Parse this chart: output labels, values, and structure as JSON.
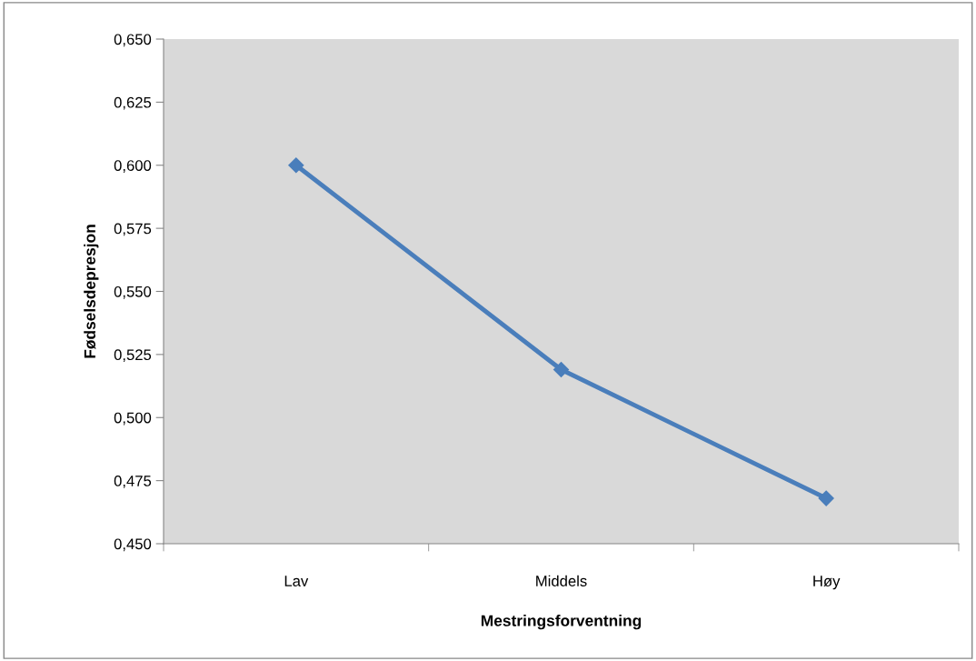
{
  "chart_data": {
    "type": "line",
    "xlabel": "Mestringsforventning",
    "ylabel": "Fødselsdepresjon",
    "categories": [
      "Lav",
      "Middels",
      "Høy"
    ],
    "series": [
      {
        "color": "#4a7ebb",
        "values": [
          0.6,
          0.519,
          0.468
        ]
      }
    ],
    "ylim": [
      0.45,
      0.65
    ],
    "yticks": [
      {
        "value": 0.45,
        "label": "0,450"
      },
      {
        "value": 0.475,
        "label": "0,475"
      },
      {
        "value": 0.5,
        "label": "0,500"
      },
      {
        "value": 0.525,
        "label": "0,525"
      },
      {
        "value": 0.55,
        "label": "0,550"
      },
      {
        "value": 0.575,
        "label": "0,575"
      },
      {
        "value": 0.6,
        "label": "0,600"
      },
      {
        "value": 0.625,
        "label": "0,625"
      },
      {
        "value": 0.65,
        "label": "0,650"
      }
    ],
    "grid": false,
    "marker": "diamond",
    "line_style": "solid"
  }
}
